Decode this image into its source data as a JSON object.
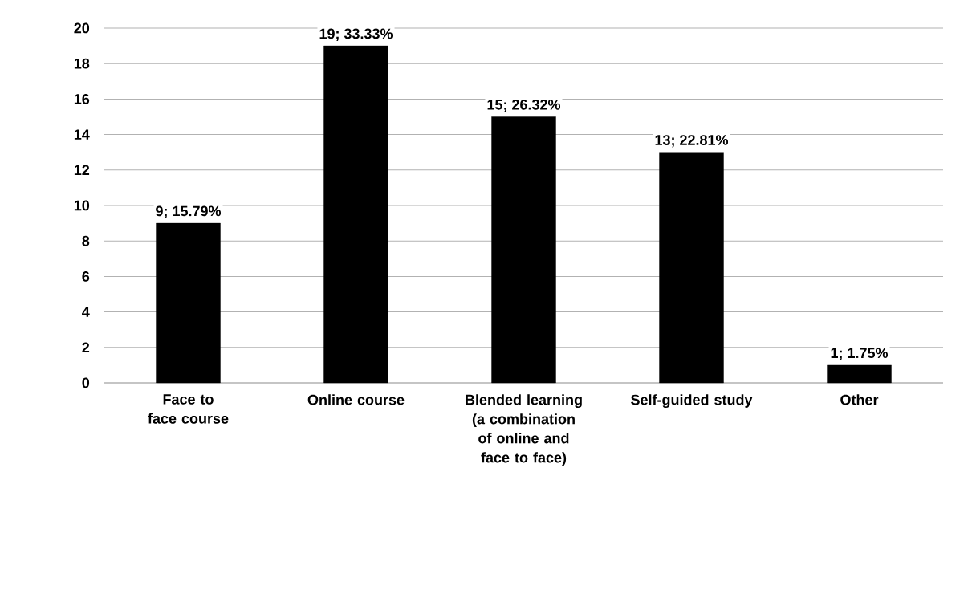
{
  "chart_data": {
    "type": "bar",
    "categories": [
      "Face to face course",
      "Online course",
      "Blended learning (a combination of online and face to face)",
      "Self-guided study",
      "Other"
    ],
    "values": [
      9,
      19,
      15,
      13,
      1
    ],
    "value_labels": [
      "9; 15.79%",
      "19; 33.33%",
      "15; 26.32%",
      "13; 22.81%",
      "1; 1.75%"
    ],
    "color": "#000000",
    "ylim": [
      0,
      20
    ],
    "yticks": [
      0,
      2,
      4,
      6,
      8,
      10,
      12,
      14,
      16,
      18,
      20
    ],
    "grid": "y"
  }
}
